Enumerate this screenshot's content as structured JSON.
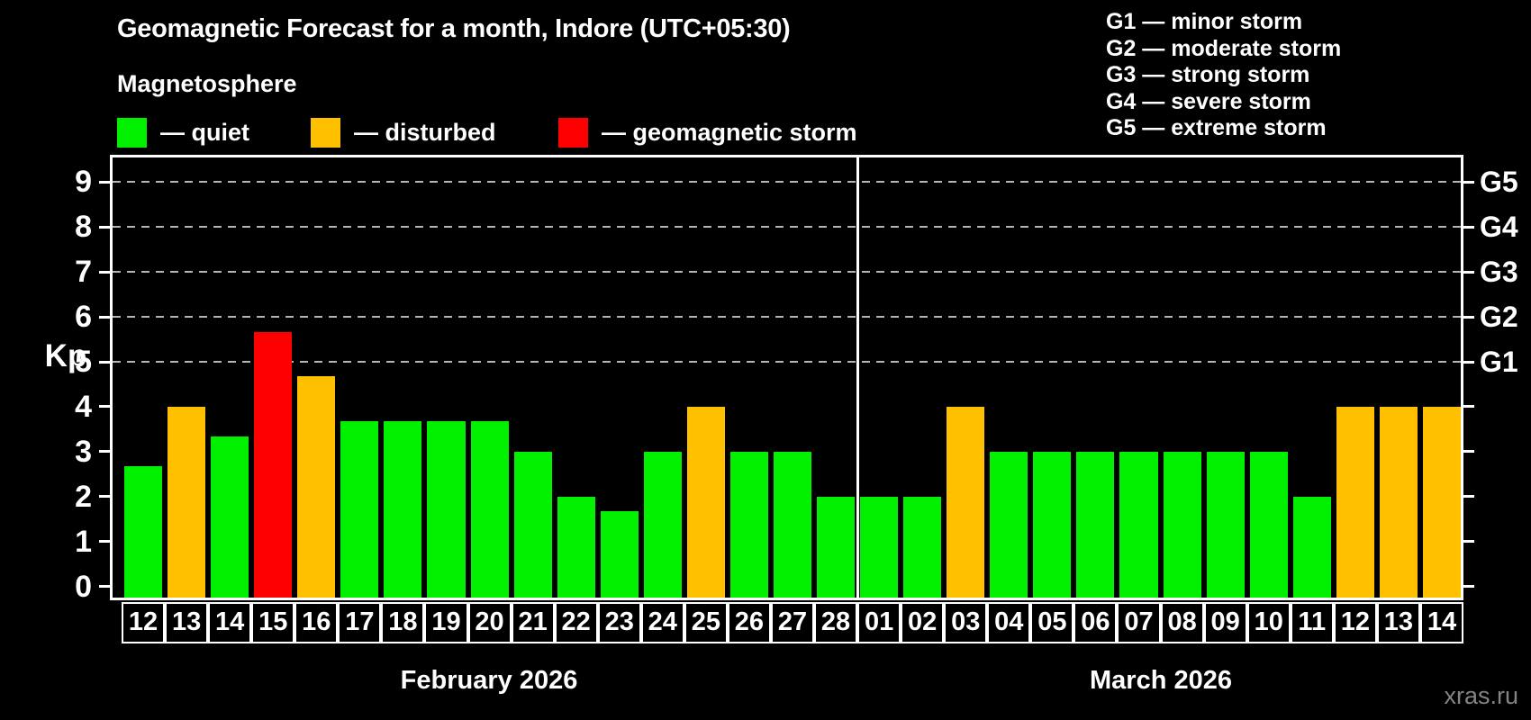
{
  "header": {
    "title": "Geomagnetic Forecast for a month, Indore (UTC+05:30)",
    "subtitle": "Magnetosphere"
  },
  "legend": {
    "items": [
      {
        "status": "quiet",
        "label": "— quiet"
      },
      {
        "status": "disturbed",
        "label": "— disturbed"
      },
      {
        "status": "storm",
        "label": "— geomagnetic storm"
      }
    ]
  },
  "g_legend": {
    "items": [
      "G1 — minor storm",
      "G2 — moderate storm",
      "G3 — strong storm",
      "G4 — severe storm",
      "G5 — extreme storm"
    ]
  },
  "colors": {
    "quiet": "#00f000",
    "disturbed": "#ffc000",
    "storm": "#ff0000",
    "grid": "#b4b4b4",
    "axis": "#ffffff",
    "watermark": "#848484"
  },
  "footer": {
    "watermark": "xras.ru"
  },
  "chart_data": {
    "type": "bar",
    "title": "Geomagnetic Forecast for a month, Indore (UTC+05:30)",
    "ylabel": "Kp",
    "xlabel": "",
    "ylim": [
      0,
      9.6
    ],
    "y_ticks": [
      0,
      1,
      2,
      3,
      4,
      5,
      6,
      7,
      8,
      9
    ],
    "gridlines_at_kp": [
      5,
      6,
      7,
      8,
      9
    ],
    "grid": "dashed horizontal lines only at G1–G5 levels (Kp 5–9)",
    "legend_position": "top-left",
    "right_axis": [
      {
        "kp": 5,
        "label": "G1"
      },
      {
        "kp": 6,
        "label": "G2"
      },
      {
        "kp": 7,
        "label": "G3"
      },
      {
        "kp": 8,
        "label": "G4"
      },
      {
        "kp": 9,
        "label": "G5"
      }
    ],
    "months": [
      {
        "label": "February 2026",
        "key": "feb",
        "days": 17
      },
      {
        "label": "March 2026",
        "key": "mar",
        "days": 14
      }
    ],
    "bars": [
      {
        "month": "feb",
        "day": "12",
        "kp": 2.67,
        "status": "quiet"
      },
      {
        "month": "feb",
        "day": "13",
        "kp": 4,
        "status": "disturbed"
      },
      {
        "month": "feb",
        "day": "14",
        "kp": 3.33,
        "status": "quiet"
      },
      {
        "month": "feb",
        "day": "15",
        "kp": 5.67,
        "status": "storm"
      },
      {
        "month": "feb",
        "day": "16",
        "kp": 4.67,
        "status": "disturbed"
      },
      {
        "month": "feb",
        "day": "17",
        "kp": 3.67,
        "status": "quiet"
      },
      {
        "month": "feb",
        "day": "18",
        "kp": 3.67,
        "status": "quiet"
      },
      {
        "month": "feb",
        "day": "19",
        "kp": 3.67,
        "status": "quiet"
      },
      {
        "month": "feb",
        "day": "20",
        "kp": 3.67,
        "status": "quiet"
      },
      {
        "month": "feb",
        "day": "21",
        "kp": 3,
        "status": "quiet"
      },
      {
        "month": "feb",
        "day": "22",
        "kp": 2,
        "status": "quiet"
      },
      {
        "month": "feb",
        "day": "23",
        "kp": 1.67,
        "status": "quiet"
      },
      {
        "month": "feb",
        "day": "24",
        "kp": 3,
        "status": "quiet"
      },
      {
        "month": "feb",
        "day": "25",
        "kp": 4,
        "status": "disturbed"
      },
      {
        "month": "feb",
        "day": "26",
        "kp": 3,
        "status": "quiet"
      },
      {
        "month": "feb",
        "day": "27",
        "kp": 3,
        "status": "quiet"
      },
      {
        "month": "feb",
        "day": "28",
        "kp": 2,
        "status": "quiet"
      },
      {
        "month": "mar",
        "day": "01",
        "kp": 2,
        "status": "quiet"
      },
      {
        "month": "mar",
        "day": "02",
        "kp": 2,
        "status": "quiet"
      },
      {
        "month": "mar",
        "day": "03",
        "kp": 4,
        "status": "disturbed"
      },
      {
        "month": "mar",
        "day": "04",
        "kp": 3,
        "status": "quiet"
      },
      {
        "month": "mar",
        "day": "05",
        "kp": 3,
        "status": "quiet"
      },
      {
        "month": "mar",
        "day": "06",
        "kp": 3,
        "status": "quiet"
      },
      {
        "month": "mar",
        "day": "07",
        "kp": 3,
        "status": "quiet"
      },
      {
        "month": "mar",
        "day": "08",
        "kp": 3,
        "status": "quiet"
      },
      {
        "month": "mar",
        "day": "09",
        "kp": 3,
        "status": "quiet"
      },
      {
        "month": "mar",
        "day": "10",
        "kp": 3,
        "status": "quiet"
      },
      {
        "month": "mar",
        "day": "11",
        "kp": 2,
        "status": "quiet"
      },
      {
        "month": "mar",
        "day": "12",
        "kp": 4,
        "status": "disturbed"
      },
      {
        "month": "mar",
        "day": "13",
        "kp": 4,
        "status": "disturbed"
      },
      {
        "month": "mar",
        "day": "14",
        "kp": 4,
        "status": "disturbed"
      }
    ]
  }
}
